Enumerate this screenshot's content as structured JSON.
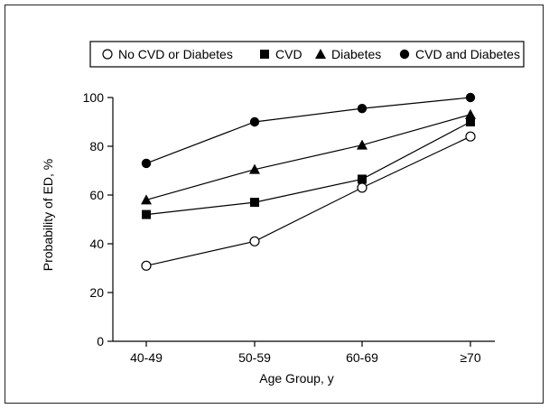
{
  "chart_data": {
    "type": "line",
    "categories": [
      "40-49",
      "50-59",
      "60-69",
      "≥70"
    ],
    "xlabel": "Age Group, y",
    "ylabel": "Probability of ED, %",
    "ylim": [
      0,
      100
    ],
    "yticks": [
      0,
      20,
      40,
      60,
      80,
      100
    ],
    "grid": false,
    "legend_position": "top",
    "series": [
      {
        "name": "No CVD or Diabetes",
        "marker": "open-circle",
        "values": [
          31,
          41,
          63,
          84
        ]
      },
      {
        "name": "CVD",
        "marker": "filled-square",
        "values": [
          52,
          57,
          66.5,
          90
        ]
      },
      {
        "name": "Diabetes",
        "marker": "filled-triangle",
        "values": [
          58,
          70.5,
          80.5,
          93
        ]
      },
      {
        "name": "CVD and Diabetes",
        "marker": "filled-circle",
        "values": [
          73,
          90,
          95.5,
          100
        ]
      }
    ]
  }
}
